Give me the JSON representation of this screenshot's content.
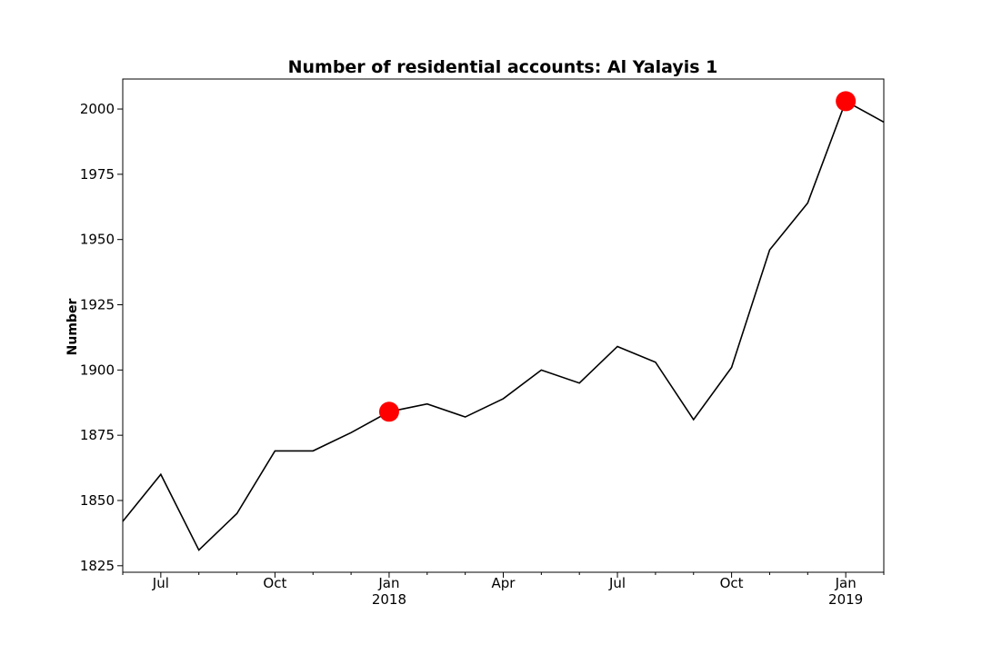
{
  "chart_data": {
    "type": "line",
    "title": "Number of residential accounts: Al Yalayis 1",
    "xlabel": "",
    "ylabel": "Number",
    "ylim": [
      1822.5,
      2011.5
    ],
    "yticks": [
      1825,
      1850,
      1875,
      1900,
      1925,
      1950,
      1975,
      2000
    ],
    "x": [
      "2017-06",
      "2017-07",
      "2017-08",
      "2017-09",
      "2017-10",
      "2017-11",
      "2017-12",
      "2018-01",
      "2018-02",
      "2018-03",
      "2018-04",
      "2018-05",
      "2018-06",
      "2018-07",
      "2018-08",
      "2018-09",
      "2018-10",
      "2018-11",
      "2018-12",
      "2019-01",
      "2019-02"
    ],
    "xticks": [
      {
        "label": "Jul",
        "index": 1
      },
      {
        "label": "Oct",
        "index": 4
      },
      {
        "label": "Jan",
        "sublabel": "2018",
        "index": 7
      },
      {
        "label": "Apr",
        "index": 10
      },
      {
        "label": "Jul",
        "index": 13
      },
      {
        "label": "Oct",
        "index": 16
      },
      {
        "label": "Jan",
        "sublabel": "2019",
        "index": 19
      }
    ],
    "series": [
      {
        "name": "residential accounts",
        "color": "#000000",
        "values": [
          1842,
          1860,
          1831,
          1845,
          1869,
          1869,
          1876,
          1884,
          1887,
          1882,
          1889,
          1900,
          1895,
          1909,
          1903,
          1881,
          1901,
          1946,
          1964,
          2003,
          1995
        ]
      }
    ],
    "highlights": [
      {
        "index": 7,
        "value": 1884,
        "color": "#ff0000"
      },
      {
        "index": 19,
        "value": 2003,
        "color": "#ff0000"
      }
    ]
  }
}
